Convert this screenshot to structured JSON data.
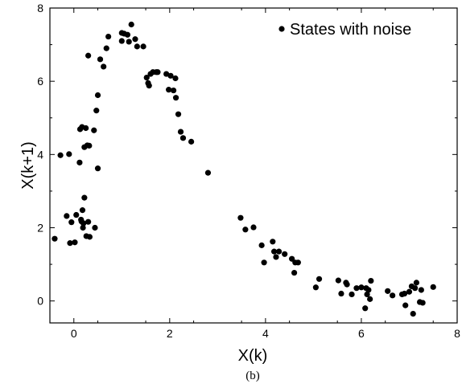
{
  "chart_data": {
    "type": "scatter",
    "xlabel": "X(k)",
    "ylabel": "X(k+1)",
    "xlim": [
      -0.5,
      8
    ],
    "ylim": [
      -0.6,
      8
    ],
    "xticks": [
      0,
      2,
      4,
      6,
      8
    ],
    "yticks": [
      0,
      2,
      4,
      6,
      8
    ],
    "xtick_labels": [
      "0",
      "2",
      "4",
      "6",
      "8"
    ],
    "ytick_labels": [
      "0",
      "2",
      "4",
      "6",
      "8"
    ],
    "legend": {
      "label": "States with noise",
      "position": "top-right"
    },
    "caption": "(b)",
    "grid": false,
    "series": [
      {
        "name": "States with noise",
        "color": "#000000",
        "points": [
          [
            -0.4,
            1.7
          ],
          [
            -0.28,
            3.98
          ],
          [
            -0.15,
            2.32
          ],
          [
            -0.1,
            4.01
          ],
          [
            -0.08,
            1.58
          ],
          [
            -0.05,
            2.15
          ],
          [
            0.02,
            1.6
          ],
          [
            0.05,
            2.35
          ],
          [
            0.12,
            3.78
          ],
          [
            0.13,
            4.69
          ],
          [
            0.15,
            2.22
          ],
          [
            0.16,
            2.17
          ],
          [
            0.17,
            4.75
          ],
          [
            0.18,
            2.48
          ],
          [
            0.19,
            2.0
          ],
          [
            0.2,
            2.12
          ],
          [
            0.22,
            4.2
          ],
          [
            0.22,
            2.82
          ],
          [
            0.25,
            4.72
          ],
          [
            0.26,
            1.77
          ],
          [
            0.28,
            4.25
          ],
          [
            0.3,
            2.16
          ],
          [
            0.3,
            6.7
          ],
          [
            0.32,
            4.24
          ],
          [
            0.33,
            1.75
          ],
          [
            0.42,
            4.66
          ],
          [
            0.44,
            2.0
          ],
          [
            0.47,
            5.2
          ],
          [
            0.5,
            5.62
          ],
          [
            0.5,
            3.62
          ],
          [
            0.55,
            6.6
          ],
          [
            0.62,
            6.4
          ],
          [
            0.68,
            6.9
          ],
          [
            0.72,
            7.22
          ],
          [
            1.0,
            7.1
          ],
          [
            1.0,
            7.32
          ],
          [
            1.05,
            7.3
          ],
          [
            1.12,
            7.27
          ],
          [
            1.15,
            7.08
          ],
          [
            1.2,
            7.55
          ],
          [
            1.28,
            7.15
          ],
          [
            1.32,
            6.95
          ],
          [
            1.45,
            6.95
          ],
          [
            1.52,
            6.1
          ],
          [
            1.55,
            5.95
          ],
          [
            1.57,
            5.88
          ],
          [
            1.6,
            6.2
          ],
          [
            1.65,
            6.25
          ],
          [
            1.72,
            6.25
          ],
          [
            1.75,
            6.25
          ],
          [
            1.93,
            6.2
          ],
          [
            1.98,
            5.77
          ],
          [
            2.02,
            6.15
          ],
          [
            2.08,
            5.75
          ],
          [
            2.12,
            6.08
          ],
          [
            2.13,
            5.55
          ],
          [
            2.18,
            5.1
          ],
          [
            2.23,
            4.62
          ],
          [
            2.28,
            4.45
          ],
          [
            2.45,
            4.35
          ],
          [
            2.8,
            3.5
          ],
          [
            3.48,
            2.27
          ],
          [
            3.58,
            1.95
          ],
          [
            3.75,
            2.01
          ],
          [
            3.92,
            1.52
          ],
          [
            3.97,
            1.05
          ],
          [
            4.15,
            1.62
          ],
          [
            4.18,
            1.35
          ],
          [
            4.22,
            1.2
          ],
          [
            4.28,
            1.35
          ],
          [
            4.4,
            1.28
          ],
          [
            4.55,
            1.15
          ],
          [
            4.6,
            0.77
          ],
          [
            4.62,
            1.05
          ],
          [
            4.68,
            1.05
          ],
          [
            5.05,
            0.37
          ],
          [
            5.12,
            0.6
          ],
          [
            5.52,
            0.56
          ],
          [
            5.58,
            0.2
          ],
          [
            5.68,
            0.5
          ],
          [
            5.7,
            0.45
          ],
          [
            5.8,
            0.18
          ],
          [
            5.9,
            0.35
          ],
          [
            6.0,
            0.37
          ],
          [
            6.08,
            -0.2
          ],
          [
            6.1,
            0.35
          ],
          [
            6.12,
            0.18
          ],
          [
            6.15,
            0.3
          ],
          [
            6.18,
            0.05
          ],
          [
            6.2,
            0.55
          ],
          [
            6.55,
            0.27
          ],
          [
            6.65,
            0.15
          ],
          [
            6.85,
            0.18
          ],
          [
            6.9,
            0.2
          ],
          [
            6.92,
            -0.12
          ],
          [
            7.0,
            0.25
          ],
          [
            7.05,
            0.4
          ],
          [
            7.08,
            -0.35
          ],
          [
            7.12,
            0.35
          ],
          [
            7.15,
            0.5
          ],
          [
            7.22,
            -0.03
          ],
          [
            7.25,
            0.3
          ],
          [
            7.28,
            -0.05
          ],
          [
            7.5,
            0.38
          ]
        ]
      }
    ]
  }
}
